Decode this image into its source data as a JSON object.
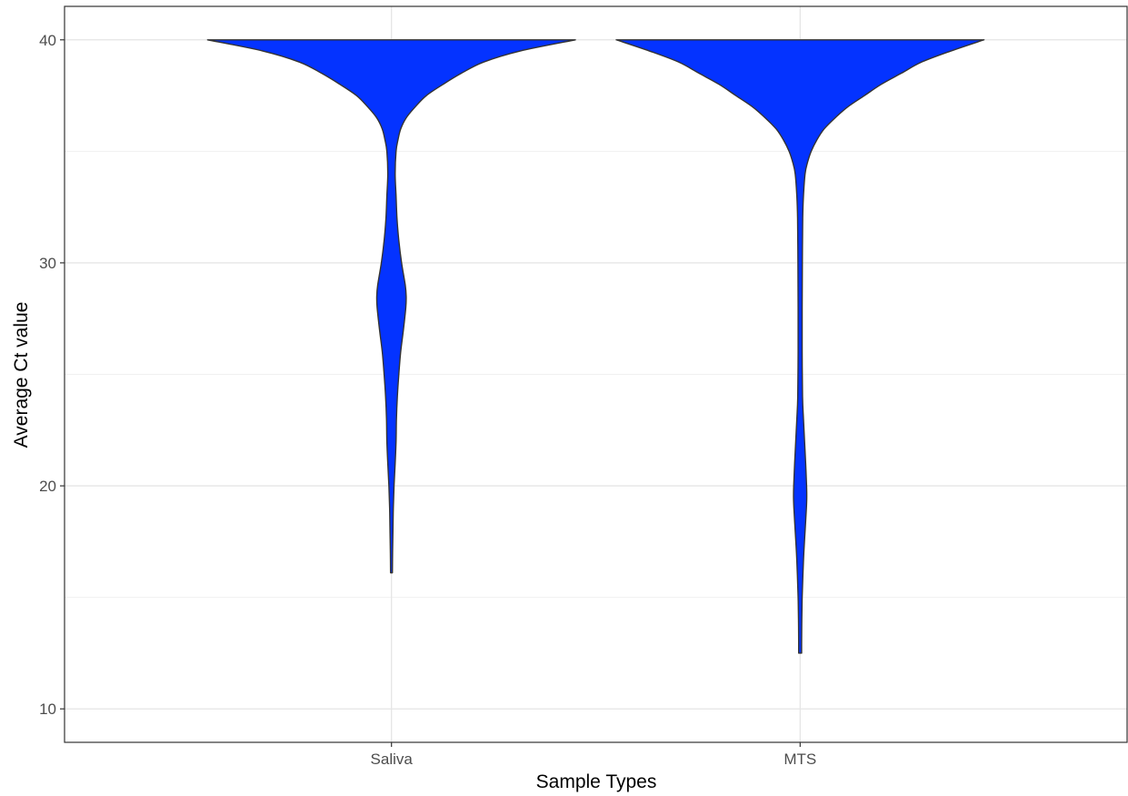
{
  "chart_data": {
    "type": "violin",
    "title": "",
    "xlabel": "Sample Types",
    "ylabel": "Average Ct value",
    "categories": [
      "Saliva",
      "MTS"
    ],
    "ylim": [
      8.5,
      41.5
    ],
    "yticks": [
      10,
      20,
      30,
      40
    ],
    "grid": true,
    "legend": "none",
    "fill_color": "#0433ff",
    "outline_color": "#333333",
    "series": [
      {
        "category": "Saliva",
        "range": [
          16.1,
          40.0
        ],
        "density_profile": [
          [
            40.0,
            1.0
          ],
          [
            39.5,
            0.7
          ],
          [
            39.0,
            0.5
          ],
          [
            38.5,
            0.38
          ],
          [
            38.0,
            0.28
          ],
          [
            37.5,
            0.19
          ],
          [
            37.0,
            0.13
          ],
          [
            36.5,
            0.08
          ],
          [
            36.0,
            0.05
          ],
          [
            35.5,
            0.035
          ],
          [
            35.0,
            0.025
          ],
          [
            34.0,
            0.02
          ],
          [
            33.0,
            0.025
          ],
          [
            32.0,
            0.03
          ],
          [
            31.0,
            0.04
          ],
          [
            30.0,
            0.055
          ],
          [
            29.0,
            0.075
          ],
          [
            28.5,
            0.08
          ],
          [
            28.0,
            0.078
          ],
          [
            27.0,
            0.065
          ],
          [
            26.0,
            0.05
          ],
          [
            25.0,
            0.04
          ],
          [
            24.0,
            0.032
          ],
          [
            23.0,
            0.027
          ],
          [
            22.0,
            0.025
          ],
          [
            21.0,
            0.02
          ],
          [
            20.0,
            0.014
          ],
          [
            19.0,
            0.01
          ],
          [
            18.0,
            0.008
          ],
          [
            17.0,
            0.006
          ],
          [
            16.1,
            0.005
          ]
        ]
      },
      {
        "category": "MTS",
        "range": [
          12.5,
          40.0
        ],
        "density_profile": [
          [
            40.0,
            1.0
          ],
          [
            39.5,
            0.82
          ],
          [
            39.0,
            0.66
          ],
          [
            38.5,
            0.55
          ],
          [
            38.0,
            0.44
          ],
          [
            37.5,
            0.35
          ],
          [
            37.0,
            0.26
          ],
          [
            36.5,
            0.19
          ],
          [
            36.0,
            0.13
          ],
          [
            35.5,
            0.09
          ],
          [
            35.0,
            0.06
          ],
          [
            34.5,
            0.04
          ],
          [
            34.0,
            0.027
          ],
          [
            33.0,
            0.018
          ],
          [
            32.0,
            0.014
          ],
          [
            30.0,
            0.012
          ],
          [
            28.0,
            0.011
          ],
          [
            26.0,
            0.011
          ],
          [
            24.0,
            0.013
          ],
          [
            23.0,
            0.018
          ],
          [
            22.0,
            0.024
          ],
          [
            21.0,
            0.03
          ],
          [
            20.0,
            0.035
          ],
          [
            19.5,
            0.036
          ],
          [
            19.0,
            0.034
          ],
          [
            18.0,
            0.027
          ],
          [
            17.0,
            0.02
          ],
          [
            16.0,
            0.015
          ],
          [
            15.0,
            0.011
          ],
          [
            14.0,
            0.009
          ],
          [
            13.0,
            0.008
          ],
          [
            12.5,
            0.008
          ]
        ]
      }
    ]
  }
}
